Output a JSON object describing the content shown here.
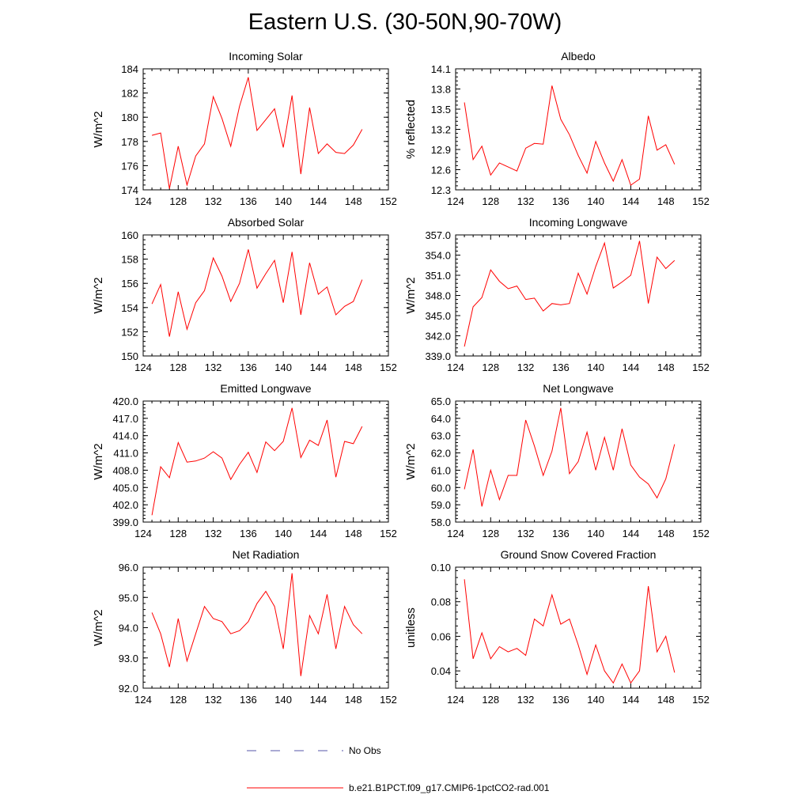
{
  "title": "Eastern U.S. (30-50N,90-70W)",
  "colors": {
    "model": "#ff0000",
    "obs": "#5555aa",
    "axis": "#000000"
  },
  "legend": {
    "obs_label": "No Obs",
    "model_label": "b.e21.B1PCT.f09_g17.CMIP6-1pctCO2-rad.001"
  },
  "chart_data": [
    {
      "type": "line",
      "title": "Incoming Solar",
      "ylabel": "W/m^2",
      "xlim": [
        124,
        152
      ],
      "xticks": [
        "124",
        "128",
        "132",
        "136",
        "140",
        "144",
        "148",
        "152"
      ],
      "ylim": [
        174,
        184
      ],
      "yticks": [
        "174",
        "176",
        "178",
        "180",
        "182",
        "184"
      ],
      "x": [
        125,
        126,
        127,
        128,
        129,
        130,
        131,
        132,
        133,
        134,
        135,
        136,
        137,
        138,
        139,
        140,
        141,
        142,
        143,
        144,
        145,
        146,
        147,
        148,
        149
      ],
      "series": [
        {
          "values": [
            178.5,
            178.7,
            174.1,
            177.6,
            174.4,
            176.8,
            177.8,
            181.7,
            179.9,
            177.6,
            180.9,
            183.3,
            178.9,
            179.8,
            180.7,
            177.5,
            181.8,
            175.3,
            180.8,
            177.0,
            177.8,
            177.1,
            177.0,
            177.7,
            179.0
          ]
        }
      ]
    },
    {
      "type": "line",
      "title": "Albedo",
      "ylabel": "% reflected",
      "xlim": [
        124,
        152
      ],
      "xticks": [
        "124",
        "128",
        "132",
        "136",
        "140",
        "144",
        "148",
        "152"
      ],
      "ylim": [
        12.3,
        14.1
      ],
      "yticks": [
        "12.3",
        "12.6",
        "12.9",
        "13.2",
        "13.5",
        "13.8",
        "14.1"
      ],
      "x": [
        125,
        126,
        127,
        128,
        129,
        130,
        131,
        132,
        133,
        134,
        135,
        136,
        137,
        138,
        139,
        140,
        141,
        142,
        143,
        144,
        145,
        146,
        147,
        148,
        149
      ],
      "series": [
        {
          "values": [
            13.6,
            12.75,
            12.95,
            12.52,
            12.7,
            12.64,
            12.58,
            12.92,
            12.99,
            12.98,
            13.85,
            13.35,
            13.12,
            12.81,
            12.55,
            13.02,
            12.7,
            12.43,
            12.75,
            12.37,
            12.46,
            13.4,
            12.89,
            12.97,
            12.68
          ]
        }
      ]
    },
    {
      "type": "line",
      "title": "Absorbed Solar",
      "ylabel": "W/m^2",
      "xlim": [
        124,
        152
      ],
      "xticks": [
        "124",
        "128",
        "132",
        "136",
        "140",
        "144",
        "148",
        "152"
      ],
      "ylim": [
        150,
        160
      ],
      "yticks": [
        "150",
        "152",
        "154",
        "156",
        "158",
        "160"
      ],
      "x": [
        125,
        126,
        127,
        128,
        129,
        130,
        131,
        132,
        133,
        134,
        135,
        136,
        137,
        138,
        139,
        140,
        141,
        142,
        143,
        144,
        145,
        146,
        147,
        148,
        149
      ],
      "series": [
        {
          "values": [
            154.3,
            155.9,
            151.6,
            155.3,
            152.2,
            154.4,
            155.4,
            158.1,
            156.6,
            154.5,
            156.0,
            158.8,
            155.6,
            156.8,
            157.9,
            154.4,
            158.6,
            153.4,
            157.7,
            155.1,
            155.7,
            153.4,
            154.1,
            154.5,
            156.3
          ]
        }
      ]
    },
    {
      "type": "line",
      "title": "Incoming Longwave",
      "ylabel": "W/m^2",
      "xlim": [
        124,
        152
      ],
      "xticks": [
        "124",
        "128",
        "132",
        "136",
        "140",
        "144",
        "148",
        "152"
      ],
      "ylim": [
        339.0,
        357.0
      ],
      "yticks": [
        "339.0",
        "342.0",
        "345.0",
        "348.0",
        "351.0",
        "354.0",
        "357.0"
      ],
      "x": [
        125,
        126,
        127,
        128,
        129,
        130,
        131,
        132,
        133,
        134,
        135,
        136,
        137,
        138,
        139,
        140,
        141,
        142,
        143,
        144,
        145,
        146,
        147,
        148,
        149
      ],
      "series": [
        {
          "values": [
            340.4,
            346.3,
            347.7,
            351.8,
            350.1,
            349.0,
            349.4,
            347.4,
            347.6,
            345.7,
            346.8,
            346.6,
            346.8,
            351.3,
            348.2,
            352.3,
            355.8,
            349.1,
            350.0,
            351.0,
            356.1,
            346.8,
            353.7,
            352.0,
            353.2
          ]
        }
      ]
    },
    {
      "type": "line",
      "title": "Emitted Longwave",
      "ylabel": "W/m^2",
      "xlim": [
        124,
        152
      ],
      "xticks": [
        "124",
        "128",
        "132",
        "136",
        "140",
        "144",
        "148",
        "152"
      ],
      "ylim": [
        399.0,
        420.0
      ],
      "yticks": [
        "399.0",
        "402.0",
        "405.0",
        "408.0",
        "411.0",
        "414.0",
        "417.0",
        "420.0"
      ],
      "x": [
        125,
        126,
        127,
        128,
        129,
        130,
        131,
        132,
        133,
        134,
        135,
        136,
        137,
        138,
        139,
        140,
        141,
        142,
        143,
        144,
        145,
        146,
        147,
        148,
        149
      ],
      "series": [
        {
          "values": [
            400.2,
            408.6,
            406.7,
            412.8,
            409.4,
            409.6,
            410.1,
            411.2,
            410.1,
            406.4,
            409.0,
            411.1,
            407.6,
            412.9,
            411.4,
            413.0,
            418.8,
            410.2,
            413.2,
            412.3,
            416.7,
            406.8,
            413.0,
            412.6,
            415.6
          ]
        }
      ]
    },
    {
      "type": "line",
      "title": "Net Longwave",
      "ylabel": "W/m^2",
      "xlim": [
        124,
        152
      ],
      "xticks": [
        "124",
        "128",
        "132",
        "136",
        "140",
        "144",
        "148",
        "152"
      ],
      "ylim": [
        58.0,
        65.0
      ],
      "yticks": [
        "58.0",
        "59.0",
        "60.0",
        "61.0",
        "62.0",
        "63.0",
        "64.0",
        "65.0"
      ],
      "x": [
        125,
        126,
        127,
        128,
        129,
        130,
        131,
        132,
        133,
        134,
        135,
        136,
        137,
        138,
        139,
        140,
        141,
        142,
        143,
        144,
        145,
        146,
        147,
        148,
        149
      ],
      "series": [
        {
          "values": [
            59.9,
            62.2,
            58.9,
            61.0,
            59.3,
            60.7,
            60.7,
            63.9,
            62.4,
            60.7,
            62.1,
            64.6,
            60.8,
            61.5,
            63.2,
            61.0,
            62.9,
            61.0,
            63.4,
            61.3,
            60.6,
            60.2,
            59.4,
            60.5,
            62.5
          ]
        }
      ]
    },
    {
      "type": "line",
      "title": "Net Radiation",
      "ylabel": "W/m^2",
      "xlim": [
        124,
        152
      ],
      "xticks": [
        "124",
        "128",
        "132",
        "136",
        "140",
        "144",
        "148",
        "152"
      ],
      "ylim": [
        92.0,
        96.0
      ],
      "yticks": [
        "92.0",
        "93.0",
        "94.0",
        "95.0",
        "96.0"
      ],
      "x": [
        125,
        126,
        127,
        128,
        129,
        130,
        131,
        132,
        133,
        134,
        135,
        136,
        137,
        138,
        139,
        140,
        141,
        142,
        143,
        144,
        145,
        146,
        147,
        148,
        149
      ],
      "series": [
        {
          "values": [
            94.5,
            93.8,
            92.7,
            94.3,
            92.9,
            93.8,
            94.7,
            94.3,
            94.2,
            93.8,
            93.9,
            94.2,
            94.8,
            95.2,
            94.7,
            93.3,
            95.8,
            92.4,
            94.4,
            93.8,
            95.1,
            93.3,
            94.7,
            94.1,
            93.8
          ]
        }
      ]
    },
    {
      "type": "line",
      "title": "Ground Snow Covered Fraction",
      "ylabel": "unitless",
      "xlim": [
        124,
        152
      ],
      "xticks": [
        "124",
        "128",
        "132",
        "136",
        "140",
        "144",
        "148",
        "152"
      ],
      "ylim": [
        0.03,
        0.1
      ],
      "yticks": [
        "0.04",
        "0.06",
        "0.08",
        "0.10"
      ],
      "x": [
        125,
        126,
        127,
        128,
        129,
        130,
        131,
        132,
        133,
        134,
        135,
        136,
        137,
        138,
        139,
        140,
        141,
        142,
        143,
        144,
        145,
        146,
        147,
        148,
        149
      ],
      "series": [
        {
          "values": [
            0.093,
            0.047,
            0.062,
            0.047,
            0.054,
            0.051,
            0.053,
            0.049,
            0.07,
            0.066,
            0.084,
            0.067,
            0.07,
            0.055,
            0.038,
            0.055,
            0.04,
            0.033,
            0.044,
            0.033,
            0.04,
            0.089,
            0.051,
            0.06,
            0.039
          ]
        }
      ]
    }
  ]
}
